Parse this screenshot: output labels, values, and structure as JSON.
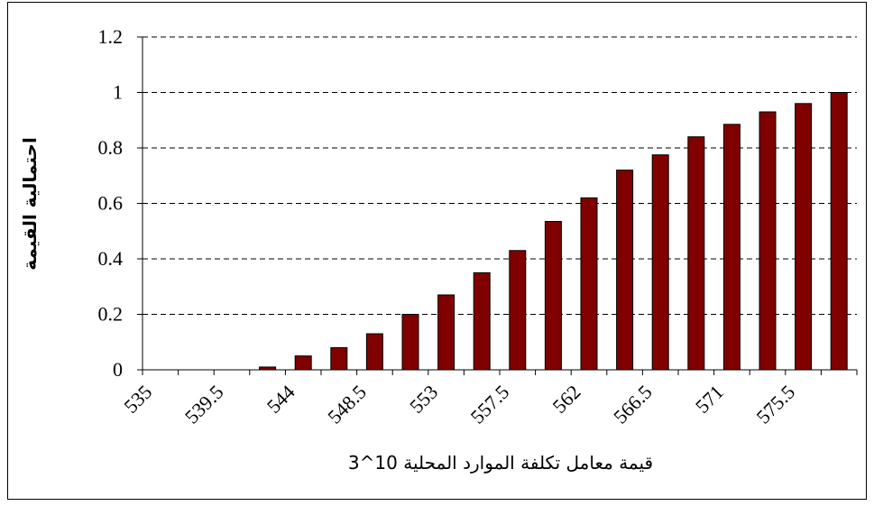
{
  "chart_data": {
    "type": "bar",
    "y_label": "احتمالية القيمة",
    "x_label": "قيمة معامل تكلفة الموارد المحلية 10^3",
    "categories": [
      "535",
      null,
      "539.5",
      null,
      "544",
      null,
      "548.5",
      null,
      "553",
      null,
      "557.5",
      null,
      "562",
      null,
      "566.5",
      null,
      "571",
      null,
      "575.5",
      null
    ],
    "values": [
      0,
      0,
      0,
      0.01,
      0.05,
      0.08,
      0.13,
      0.2,
      0.27,
      0.35,
      0.43,
      0.535,
      0.62,
      0.72,
      0.775,
      0.84,
      0.885,
      0.93,
      0.96,
      1.0
    ],
    "color": "#800000",
    "ylim": [
      0,
      1.2
    ],
    "yticks": [
      0,
      0.2,
      0.4,
      0.6,
      0.8,
      1,
      1.2
    ],
    "grid": true
  }
}
